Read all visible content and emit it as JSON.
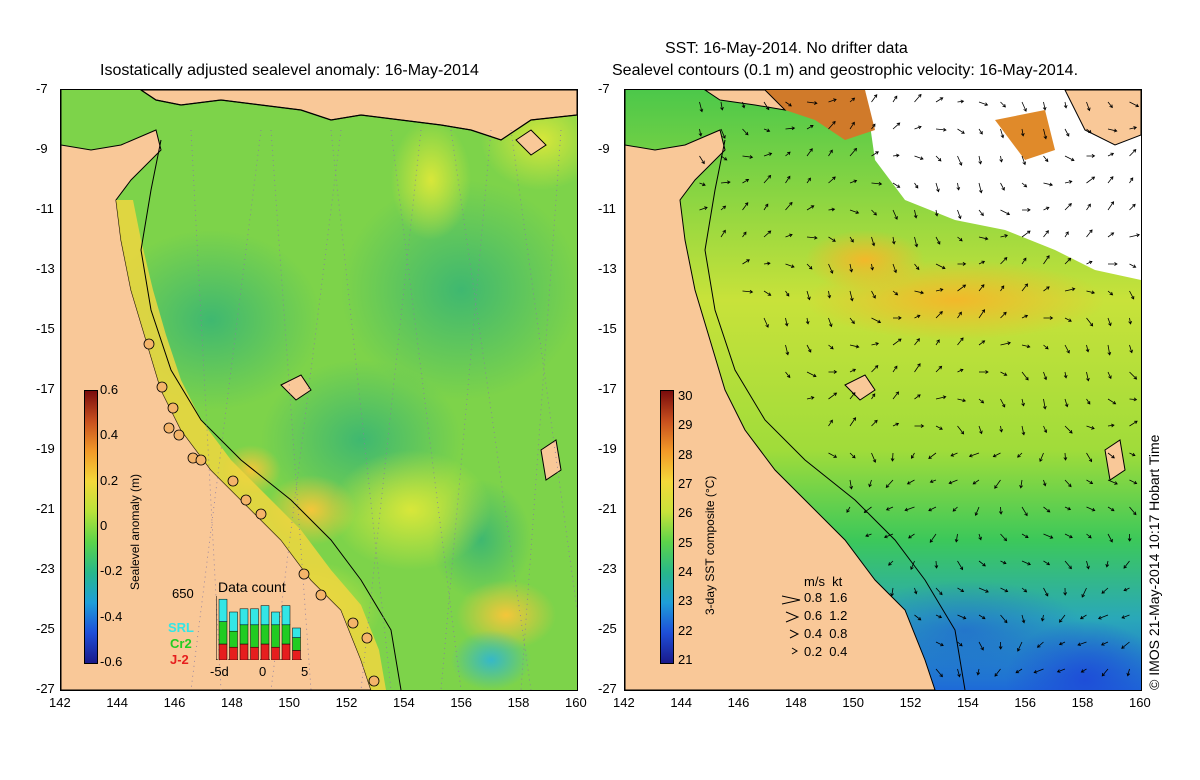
{
  "left_panel": {
    "title": "Isostatically adjusted sealevel anomaly: 16-May-2014",
    "colorbar": {
      "label": "Sealevel anomaly (m)",
      "ticks": [
        "0.6",
        "0.4",
        "0.2",
        "0",
        "-0.2",
        "-0.4",
        "-0.6"
      ]
    },
    "data_count": {
      "title": "Data count",
      "max_label": "650",
      "satellites": [
        {
          "name": "SRL",
          "color": "#33e6e6"
        },
        {
          "name": "Cr2",
          "color": "#22cc22"
        },
        {
          "name": "J-2",
          "color": "#e61e1e"
        }
      ],
      "x_ticks": [
        "-5d",
        "0",
        "5"
      ],
      "bars": [
        {
          "j2": 0.25,
          "cr2": 0.35,
          "srl": 0.35
        },
        {
          "j2": 0.2,
          "cr2": 0.25,
          "srl": 0.3
        },
        {
          "j2": 0.25,
          "cr2": 0.3,
          "srl": 0.25
        },
        {
          "j2": 0.2,
          "cr2": 0.35,
          "srl": 0.25
        },
        {
          "j2": 0.25,
          "cr2": 0.3,
          "srl": 0.3
        },
        {
          "j2": 0.2,
          "cr2": 0.35,
          "srl": 0.2
        },
        {
          "j2": 0.25,
          "cr2": 0.3,
          "srl": 0.3
        },
        {
          "j2": 0.15,
          "cr2": 0.2,
          "srl": 0.15
        }
      ]
    }
  },
  "right_panel": {
    "title_line1": "SST: 16-May-2014. No drifter data",
    "title_line2": "Sealevel contours (0.1 m) and geostrophic velocity: 16-May-2014.",
    "colorbar": {
      "label": "3-day SST composite (°C)",
      "ticks": [
        "30",
        "29",
        "28",
        "27",
        "26",
        "25",
        "24",
        "23",
        "22",
        "21"
      ]
    },
    "velocity_legend": {
      "header": "m/s  kt",
      "rows": [
        "0.8  1.6",
        "0.6  1.2",
        "0.4  0.8",
        "0.2  0.4"
      ]
    },
    "credit": "© IMOS 21-May-2014 10:17 Hobart Time"
  },
  "axes": {
    "lat_ticks": [
      "-7",
      "-9",
      "-11",
      "-13",
      "-15",
      "-17",
      "-19",
      "-21",
      "-23",
      "-25",
      "-27"
    ],
    "lon_ticks": [
      "142",
      "144",
      "146",
      "148",
      "150",
      "152",
      "154",
      "156",
      "158",
      "160"
    ]
  },
  "colors": {
    "land": "#f9c898",
    "sla_base": "#7dd34a",
    "sst_base": "#9ae04a",
    "coast": "#000000"
  }
}
